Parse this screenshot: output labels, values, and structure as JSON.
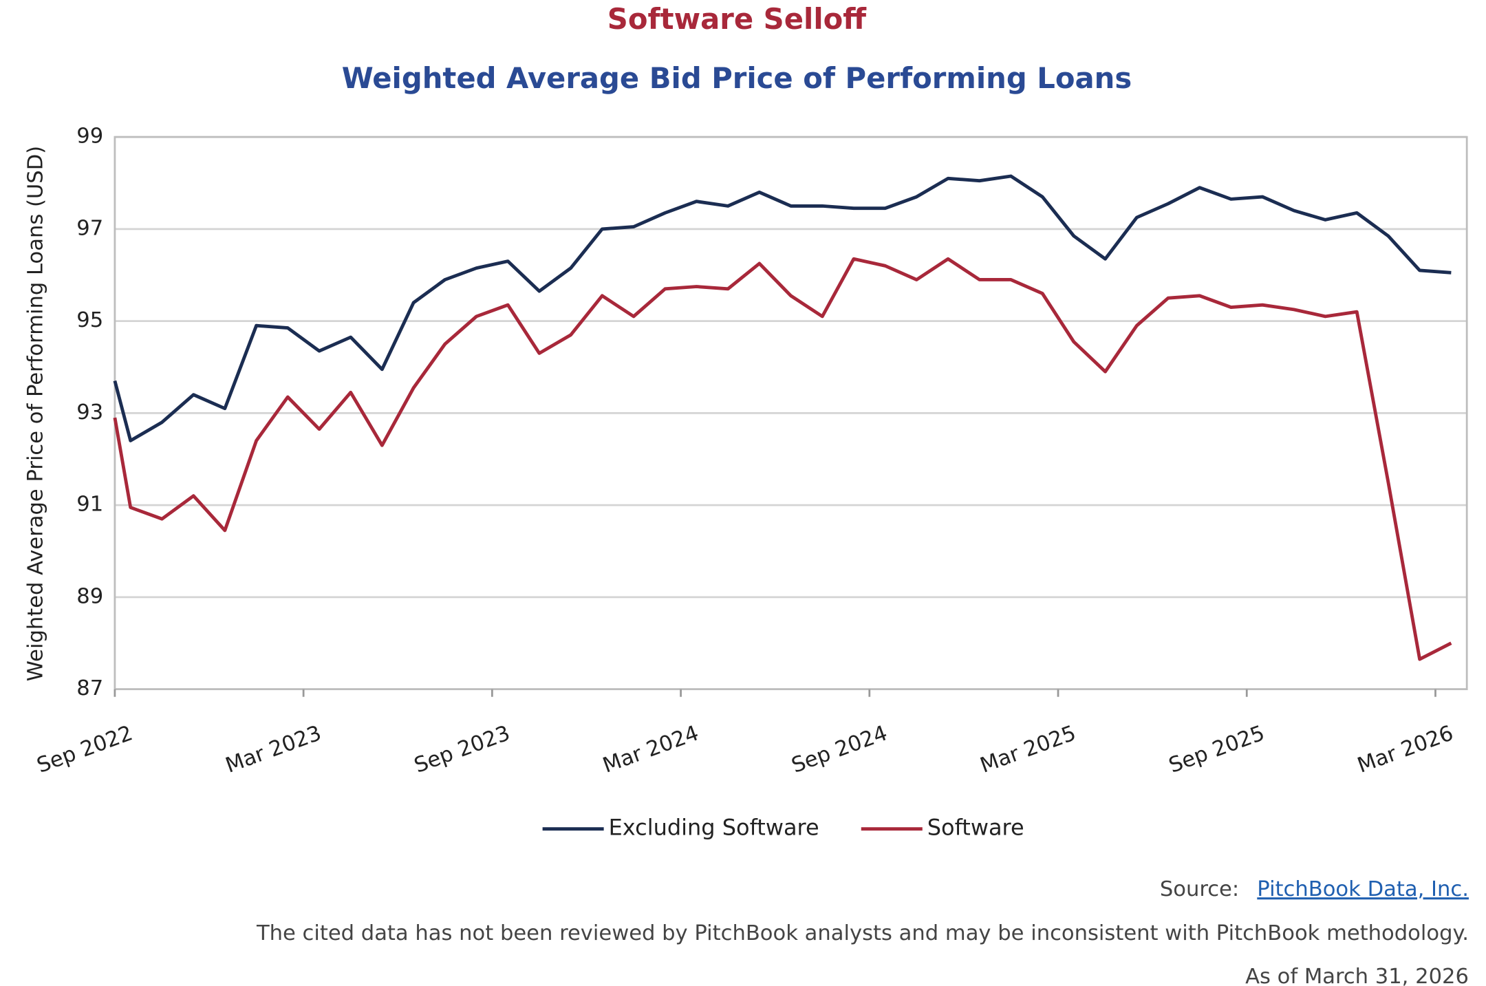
{
  "chart_data": {
    "type": "line",
    "title": "Software Selloff",
    "subtitle": "Weighted Average Bid Price of Performing Loans",
    "y_label": "Weighted Average Price of Performing Loans (USD)",
    "x": [
      0,
      0.5,
      1.5,
      2.5,
      3.5,
      4.5,
      5.5,
      6.5,
      7.5,
      8.5,
      9.5,
      10.5,
      11.5,
      12.5,
      13.5,
      14.5,
      15.5,
      16.5,
      17.5,
      18.5,
      19.5,
      20.5,
      21.5,
      22.5,
      23.5,
      24.5,
      25.5,
      26.5,
      27.5,
      28.5,
      29.5,
      30.5,
      31.5,
      32.5,
      33.5,
      34.5,
      35.5,
      36.5,
      37.5,
      38.5,
      39.5,
      40.5,
      41.5,
      42.5
    ],
    "series": [
      {
        "name": "Excluding Software",
        "color": "#1b2d52",
        "values": [
          93.7,
          92.4,
          92.8,
          93.4,
          93.1,
          94.9,
          94.85,
          94.35,
          94.65,
          93.95,
          95.4,
          95.9,
          96.15,
          96.3,
          95.65,
          96.15,
          97.0,
          97.05,
          97.35,
          97.6,
          97.5,
          97.8,
          97.5,
          97.5,
          97.45,
          97.45,
          97.7,
          98.1,
          98.05,
          98.15,
          97.7,
          96.85,
          96.35,
          97.25,
          97.55,
          97.9,
          97.65,
          97.7,
          97.4,
          97.2,
          97.35,
          96.85,
          96.1,
          96.05
        ]
      },
      {
        "name": "Software",
        "color": "#a8283a",
        "values": [
          92.9,
          90.95,
          90.7,
          91.2,
          90.45,
          92.4,
          93.35,
          92.65,
          93.45,
          92.3,
          93.55,
          94.5,
          95.1,
          95.35,
          94.3,
          94.7,
          95.55,
          95.1,
          95.7,
          95.75,
          95.7,
          96.25,
          95.55,
          95.1,
          96.35,
          96.2,
          95.9,
          96.35,
          95.9,
          95.9,
          95.6,
          94.55,
          93.9,
          94.9,
          95.5,
          95.55,
          95.3,
          95.35,
          95.25,
          95.1,
          95.2,
          91.5,
          87.65,
          88.0
        ]
      }
    ],
    "xlim": [
      0,
      43
    ],
    "xticks": [
      {
        "value": 0,
        "label": "Sep 2022"
      },
      {
        "value": 6,
        "label": "Mar 2023"
      },
      {
        "value": 12,
        "label": "Sep 2023"
      },
      {
        "value": 18,
        "label": "Mar 2024"
      },
      {
        "value": 24,
        "label": "Sep 2024"
      },
      {
        "value": 30,
        "label": "Mar 2025"
      },
      {
        "value": 36,
        "label": "Sep 2025"
      },
      {
        "value": 42,
        "label": "Mar 2026"
      }
    ],
    "ylim": [
      87,
      99
    ],
    "yticks": [
      87,
      89,
      91,
      93,
      95,
      97,
      99
    ],
    "grid": true,
    "legend": "bottom"
  },
  "footer": {
    "source_label": "Source:",
    "source_link": "PitchBook Data, Inc.",
    "disclaimer": "The cited data has not been reviewed by PitchBook analysts and may be inconsistent with PitchBook methodology.",
    "as_of": "As of March 31, 2026"
  }
}
